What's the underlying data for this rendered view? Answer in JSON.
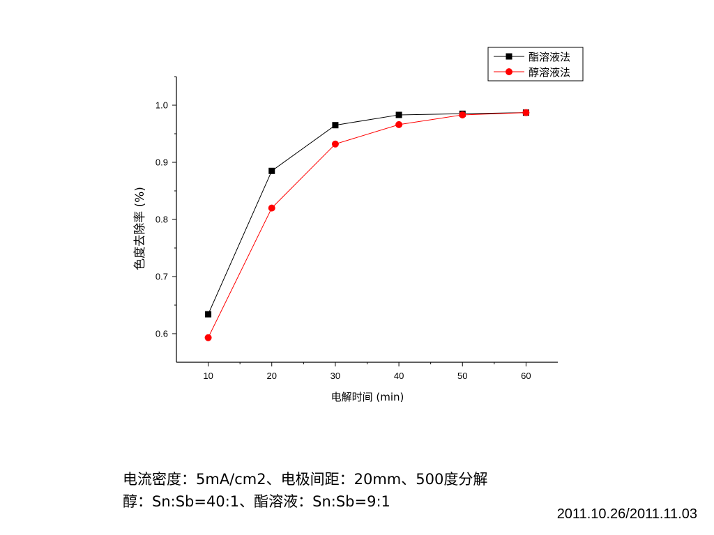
{
  "chart_data": {
    "type": "line",
    "x": [
      10,
      20,
      30,
      40,
      50,
      60
    ],
    "series": [
      {
        "name": "酯溶液法",
        "marker": "square",
        "color": "#000000",
        "values": [
          0.634,
          0.885,
          0.965,
          0.983,
          0.985,
          0.987
        ]
      },
      {
        "name": "醇溶液法",
        "marker": "circle",
        "color": "#ff0000",
        "values": [
          0.593,
          0.82,
          0.932,
          0.966,
          0.983,
          0.987
        ]
      }
    ],
    "xlabel": "电解时间 (min)",
    "ylabel": "色度去除率 (%)",
    "xlim": [
      5,
      65
    ],
    "ylim": [
      0.55,
      1.05
    ],
    "xticks": [
      "10",
      "20",
      "30",
      "40",
      "50",
      "60"
    ],
    "yticks": [
      "0.6",
      "0.7",
      "0.8",
      "0.9",
      "1.0"
    ],
    "legend_position": "top-right",
    "grid": false
  },
  "caption": {
    "line1": "电流密度：5mA/cm2、电极间距：20mm、500度分解",
    "line2": "醇：Sn:Sb=40:1、酯溶液：Sn:Sb=9:1"
  },
  "date_stamp": "2011.10.26/2011.11.03"
}
